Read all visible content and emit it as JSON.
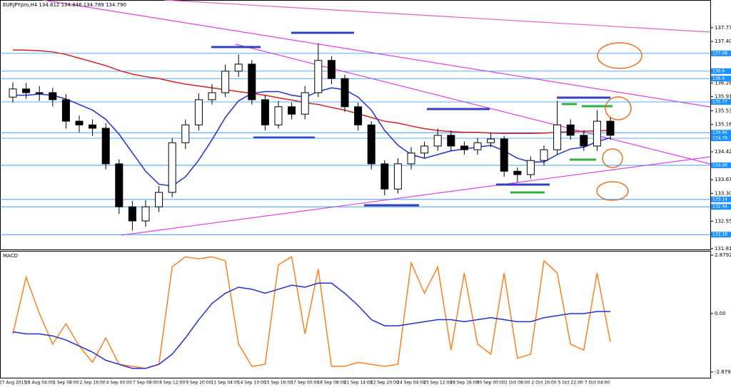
{
  "chart_data": [
    {
      "type": "candlestick",
      "title": "EURJPYpro,H4 134.812 134.846 134.789 134.790",
      "categories": [
        "27 Aug 2015",
        null,
        "28 Aug 04:00",
        null,
        "1 Sep 08:00",
        null,
        "2 Sep 16:00",
        null,
        "4 Sep 00:00",
        null,
        "7 Sep 08:00",
        null,
        "8 Sep 12:00",
        null,
        "9 Sep 20:00",
        null,
        "11 Sep 04:00",
        null,
        "14 Sep 10:00",
        null,
        "15 Sep 16:00",
        null,
        "17 Sep 00:00",
        null,
        "18 Sep 08:00",
        null,
        "21 Sep 14:00",
        null,
        "22 Sep 20:00",
        null,
        "24 Sep 04:00",
        null,
        "25 Sep 12:00",
        null,
        "28 Sep 16:00",
        null,
        "30 Sep 00:00",
        null,
        "1 Oct 08:00",
        null,
        "2 Oct 16:00",
        null,
        "5 Oct 22:00",
        null,
        "7 Oct 04:00",
        null
      ],
      "open": [
        135.9,
        136.12,
        136.02,
        136.02,
        135.83,
        135.25,
        135.15,
        135.06,
        134.1,
        132.94,
        132.56,
        132.94,
        133.33,
        134.67,
        135.15,
        135.83,
        136.02,
        136.6,
        136.79,
        135.83,
        135.15,
        135.64,
        135.44,
        136.02,
        136.89,
        136.4,
        135.64,
        135.15,
        134.1,
        133.42,
        134.1,
        134.39,
        134.58,
        134.87,
        134.58,
        134.48,
        134.67,
        134.77,
        133.9,
        133.81,
        134.19,
        134.48,
        135.15,
        134.87,
        134.58,
        135.25
      ],
      "high": [
        136.3,
        136.28,
        136.2,
        136.15,
        135.98,
        135.4,
        135.3,
        135.2,
        134.22,
        133.1,
        133.12,
        133.5,
        134.8,
        135.3,
        136.0,
        136.25,
        136.78,
        137.05,
        136.9,
        135.95,
        135.8,
        135.75,
        136.2,
        137.35,
        137.0,
        136.5,
        135.75,
        135.25,
        134.2,
        134.25,
        134.55,
        134.7,
        135.05,
        135.0,
        134.7,
        134.8,
        134.95,
        134.85,
        134.0,
        134.3,
        134.6,
        135.8,
        135.3,
        135.0,
        135.55,
        135.35
      ],
      "low": [
        135.75,
        135.85,
        135.8,
        135.65,
        135.05,
        134.95,
        134.85,
        133.95,
        132.75,
        132.3,
        132.4,
        132.8,
        133.2,
        134.5,
        135.0,
        135.7,
        135.9,
        136.45,
        135.7,
        135.0,
        135.05,
        135.3,
        135.3,
        135.9,
        136.25,
        135.5,
        135.0,
        133.95,
        133.25,
        133.3,
        133.95,
        134.25,
        134.45,
        134.45,
        134.35,
        134.35,
        134.55,
        133.75,
        133.6,
        133.7,
        134.05,
        134.35,
        134.75,
        134.45,
        134.45,
        134.75
      ],
      "close": [
        136.12,
        136.02,
        136.02,
        135.83,
        135.25,
        135.15,
        135.06,
        134.1,
        132.94,
        132.56,
        132.94,
        133.33,
        134.67,
        135.15,
        135.83,
        136.02,
        136.6,
        136.79,
        135.83,
        135.15,
        135.64,
        135.44,
        136.02,
        136.89,
        136.4,
        135.64,
        135.15,
        134.1,
        133.42,
        134.1,
        134.39,
        134.58,
        134.87,
        134.58,
        134.48,
        134.67,
        134.77,
        133.9,
        133.81,
        134.19,
        134.48,
        135.15,
        134.87,
        134.58,
        135.25,
        134.87
      ],
      "overlays": [
        {
          "color": "#d42020",
          "values": [
            137.17,
            137.17,
            137.15,
            137.12,
            137.05,
            136.95,
            136.85,
            136.75,
            136.62,
            136.52,
            136.45,
            136.4,
            136.32,
            136.25,
            136.2,
            136.15,
            136.1,
            136.05,
            136.0,
            135.95,
            135.88,
            135.82,
            135.75,
            135.7,
            135.62,
            135.55,
            135.45,
            135.35,
            135.25,
            135.2,
            135.12,
            135.05,
            135.0,
            134.97,
            134.95,
            134.95,
            134.93,
            134.92,
            134.92,
            134.92,
            134.93,
            134.95,
            134.97,
            134.98,
            134.99,
            135.0
          ]
        },
        {
          "color": "#2030d0",
          "values": [
            135.95,
            135.95,
            135.98,
            135.95,
            135.85,
            135.7,
            135.55,
            135.3,
            134.9,
            134.4,
            133.9,
            133.55,
            133.5,
            133.75,
            134.2,
            134.75,
            135.35,
            135.8,
            136.0,
            136.05,
            136.05,
            135.95,
            135.9,
            136.05,
            136.15,
            136.1,
            135.9,
            135.55,
            135.0,
            134.6,
            134.35,
            134.25,
            134.35,
            134.45,
            134.5,
            134.55,
            134.6,
            134.45,
            134.25,
            134.15,
            134.15,
            134.35,
            134.5,
            134.55,
            134.7,
            134.8
          ]
        }
      ],
      "levels": [
        137.08,
        136.6,
        136.4,
        135.77,
        134.94,
        134.79,
        134.06,
        133.14,
        132.94,
        132.19
      ],
      "level_color": "#1e90ff",
      "ylim": [
        131.79,
        138.52
      ],
      "yticks": [
        137.772,
        137.402,
        136.282,
        135.912,
        135.532,
        135.162,
        134.422,
        133.672,
        133.302,
        132.552,
        131.812
      ]
    },
    {
      "type": "line",
      "title": "MACD",
      "series": [
        {
          "color": "#ff8020",
          "values": [
            -1.0,
            1.8,
            0.0,
            -1.5,
            -0.5,
            -1.6,
            -2.4,
            -1.2,
            -2.5,
            -2.6,
            -2.7,
            -2.5,
            2.3,
            2.8,
            2.7,
            2.8,
            2.6,
            -1.5,
            -2.6,
            -2.5,
            2.4,
            2.8,
            -1.0,
            2.2,
            -2.6,
            -2.6,
            -2.4,
            -2.5,
            -2.6,
            -2.5,
            2.5,
            1.0,
            2.3,
            -1.8,
            2.0,
            -1.5,
            -2.0,
            2.0,
            -2.2,
            -2.0,
            2.6,
            2.0,
            -1.5,
            -1.8,
            2.0,
            -1.4
          ]
        },
        {
          "color": "#2030d0",
          "values": [
            -0.9,
            -1.0,
            -1.0,
            -1.1,
            -1.3,
            -1.6,
            -1.9,
            -2.3,
            -2.5,
            -2.7,
            -2.7,
            -2.5,
            -2.0,
            -1.2,
            -0.3,
            0.5,
            1.0,
            1.3,
            1.2,
            1.0,
            1.2,
            1.4,
            1.3,
            1.5,
            1.5,
            1.0,
            0.4,
            -0.3,
            -0.6,
            -0.6,
            -0.5,
            -0.4,
            -0.3,
            -0.3,
            -0.4,
            -0.3,
            -0.2,
            -0.3,
            -0.4,
            -0.4,
            -0.2,
            -0.1,
            0,
            0.0,
            0.1,
            0.1
          ]
        }
      ],
      "ylim": [
        -3.16,
        3.09
      ],
      "yticks": [
        2.8792,
        {
          "value": 0,
          "label": "0.00"
        },
        -2.8792
      ]
    }
  ]
}
